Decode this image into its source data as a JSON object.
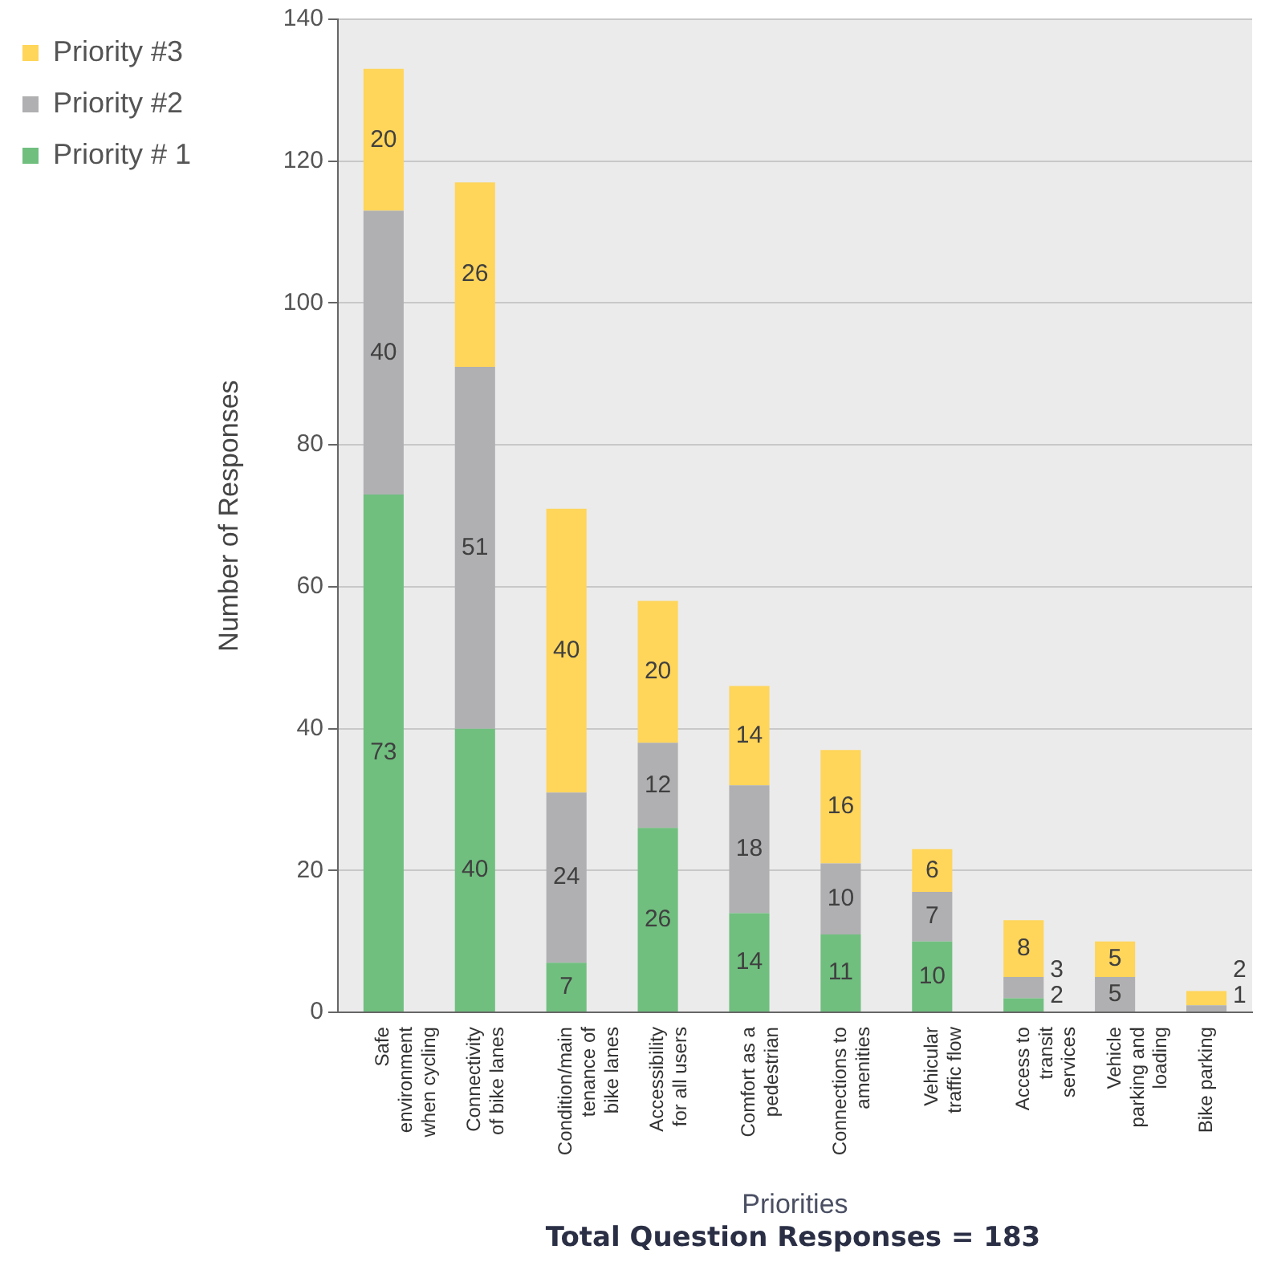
{
  "chart_data": {
    "type": "bar",
    "stacked": true,
    "xlabel": "Priorities",
    "ylabel": "Number of Responses",
    "categories": [
      "Safe environment when cycling",
      "Connectivity of bike lanes",
      "Condition/main tenance of bike lanes",
      "Accessibility for all users",
      "Comfort as a pedestrian",
      "Connections to amenities",
      "Vehicular traffic flow",
      "Access to transit services",
      "Vehicle parking and loading",
      "Bike parking"
    ],
    "series": [
      {
        "name": "Priority # 1",
        "color": "#70bf7f",
        "values": [
          73,
          40,
          7,
          26,
          14,
          11,
          10,
          2,
          0,
          0
        ],
        "value_labels": [
          "73",
          "40",
          "7",
          "26",
          "14",
          "11",
          "10",
          "2",
          null,
          null
        ]
      },
      {
        "name": "Priority #2",
        "color": "#b0b0b2",
        "values": [
          40,
          51,
          24,
          12,
          18,
          10,
          7,
          3,
          5,
          1
        ],
        "value_labels": [
          "40",
          "51",
          "24",
          "12",
          "18",
          "10",
          "7",
          "3",
          "5",
          "1"
        ]
      },
      {
        "name": "Priority #3",
        "color": "#ffd55a",
        "values": [
          20,
          26,
          40,
          20,
          14,
          16,
          6,
          8,
          5,
          2
        ],
        "value_labels": [
          "20",
          "26",
          "40",
          "20",
          "14",
          "16",
          "6",
          "8",
          "5",
          "2"
        ]
      }
    ],
    "ylim": [
      0,
      140
    ],
    "yticks": [
      0,
      20,
      40,
      60,
      80,
      100,
      120,
      140
    ],
    "grid": "y",
    "legend": "top left",
    "annotations": [
      "Total Question Responses = 183"
    ]
  }
}
